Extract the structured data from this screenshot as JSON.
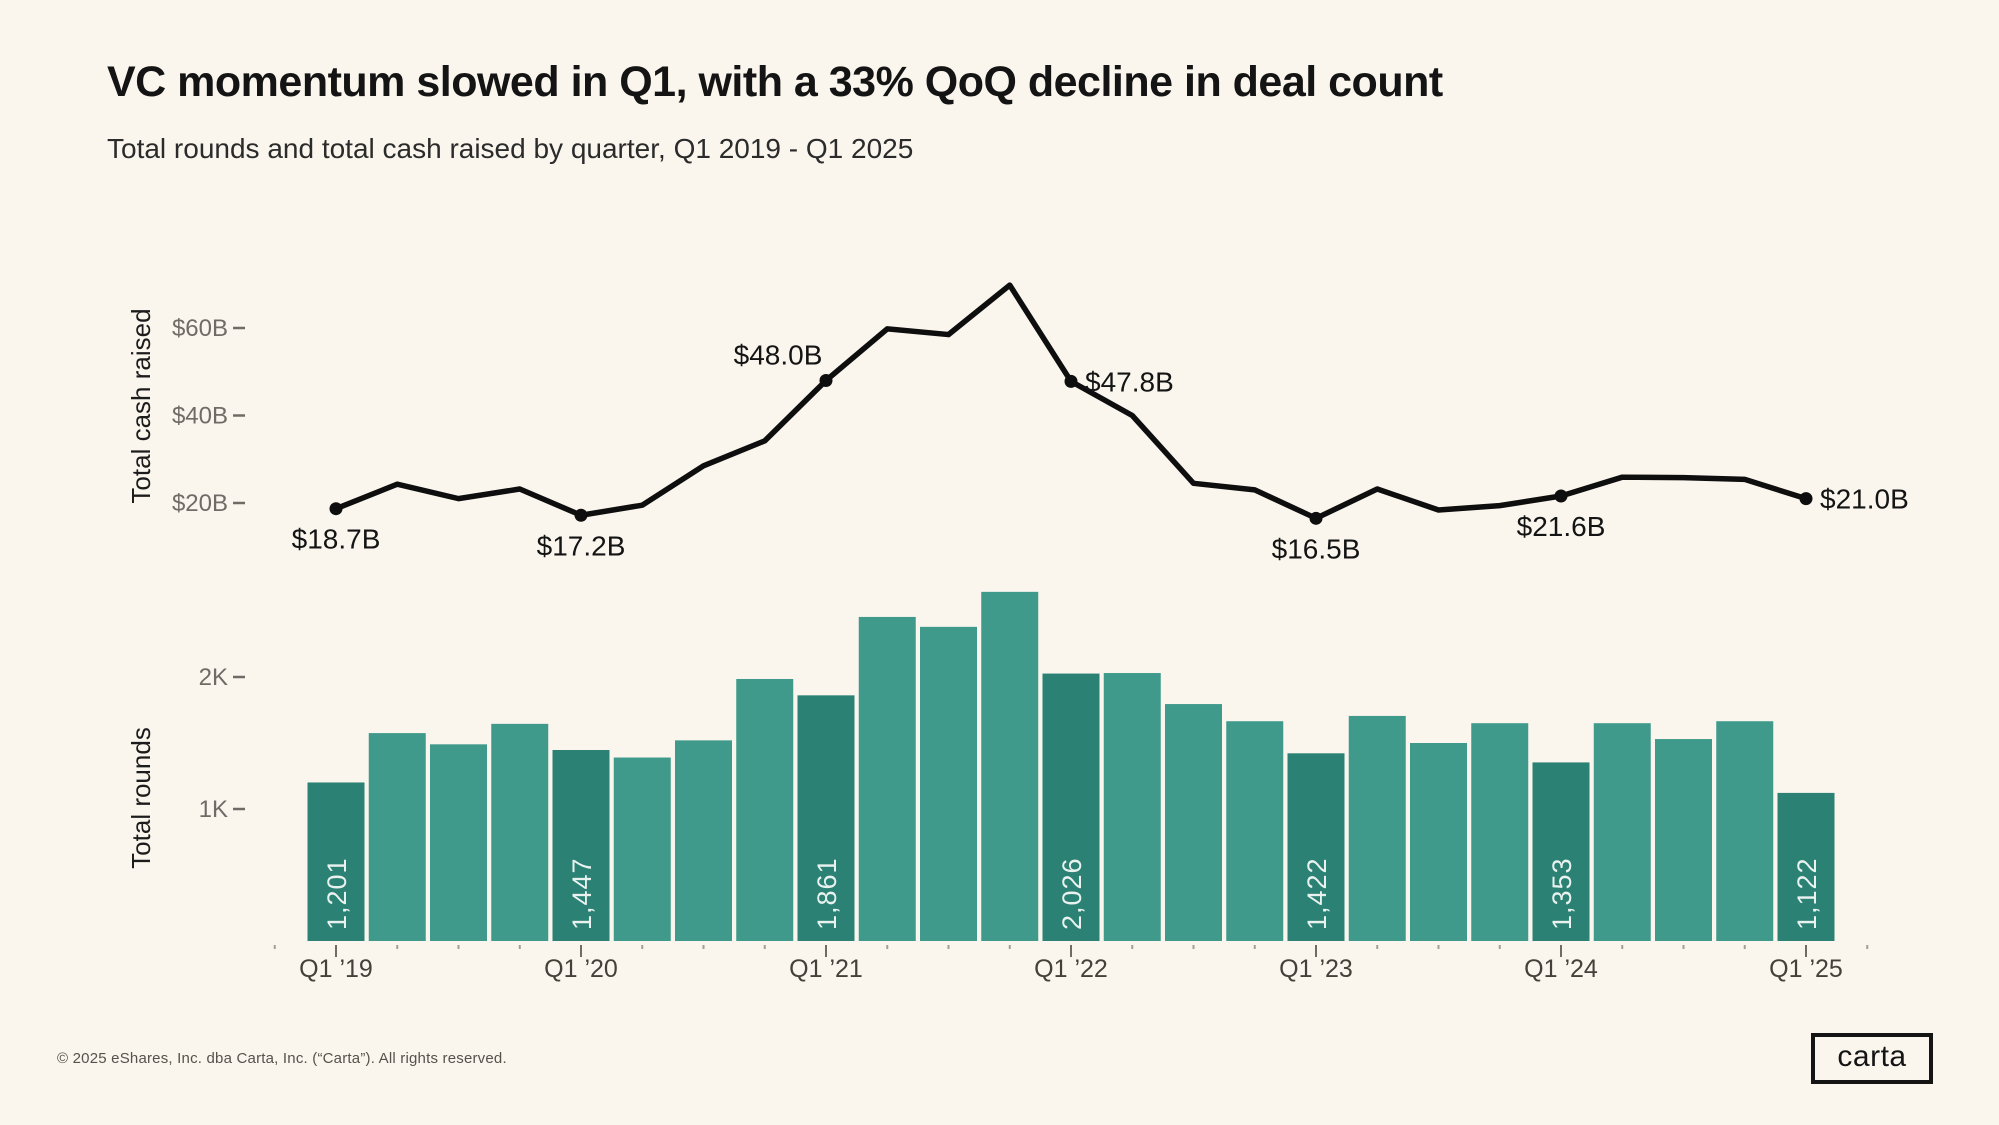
{
  "header": {
    "title": "VC momentum slowed in Q1, with a 33% QoQ decline in deal count",
    "subtitle": "Total rounds and total cash raised by quarter, Q1 2019 - Q1 2025"
  },
  "footer": {
    "copyright": "© 2025 eShares, Inc. dba Carta, Inc. (“Carta”). All rights reserved.",
    "logo_text": "carta"
  },
  "colors": {
    "background": "#faf6ee",
    "bar": "#3f9a8b",
    "bar_highlight": "#2a8174",
    "bar_label": "#e9f2ef",
    "line": "#0e0e0e",
    "label_dark": "#141414",
    "tick_gray": "#6f6b66",
    "xlabel_gray": "#44403a"
  },
  "chart_data": [
    {
      "type": "line",
      "title": "Total cash raised by quarter",
      "ylabel": "Total cash raised",
      "unit": "$B",
      "x": [
        "Q1 ’19",
        "Q2 ’19",
        "Q3 ’19",
        "Q4 ’19",
        "Q1 ’20",
        "Q2 ’20",
        "Q3 ’20",
        "Q4 ’20",
        "Q1 ’21",
        "Q2 ’21",
        "Q3 ’21",
        "Q4 ’21",
        "Q1 ’22",
        "Q2 ’22",
        "Q3 ’22",
        "Q4 ’22",
        "Q1 ’23",
        "Q2 ’23",
        "Q3 ’23",
        "Q4 ’23",
        "Q1 ’24",
        "Q2 ’24",
        "Q3 ’24",
        "Q4 ’24",
        "Q1 ’25"
      ],
      "values": [
        18.7,
        24.3,
        21.0,
        23.2,
        17.2,
        19.5,
        28.5,
        34.2,
        48.0,
        59.8,
        58.5,
        69.8,
        47.8,
        40.0,
        24.5,
        23.0,
        16.5,
        23.2,
        18.4,
        19.4,
        21.6,
        25.9,
        25.8,
        25.4,
        21.0
      ],
      "ylim": [
        0,
        75
      ],
      "grid": false,
      "yticks": [
        {
          "value": 20,
          "label": "$20B"
        },
        {
          "value": 40,
          "label": "$40B"
        },
        {
          "value": 60,
          "label": "$60B"
        }
      ],
      "labeled_points": [
        {
          "index": 0,
          "x": "Q1 ’19",
          "value": 18.7,
          "label": "$18.7B",
          "placement": "below"
        },
        {
          "index": 4,
          "x": "Q1 ’20",
          "value": 17.2,
          "label": "$17.2B",
          "placement": "below"
        },
        {
          "index": 8,
          "x": "Q1 ’21",
          "value": 48.0,
          "label": "$48.0B",
          "placement": "above-left"
        },
        {
          "index": 12,
          "x": "Q1 ’22",
          "value": 47.8,
          "label": "$47.8B",
          "placement": "right"
        },
        {
          "index": 16,
          "x": "Q1 ’23",
          "value": 16.5,
          "label": "$16.5B",
          "placement": "below"
        },
        {
          "index": 20,
          "x": "Q1 ’24",
          "value": 21.6,
          "label": "$21.6B",
          "placement": "below"
        },
        {
          "index": 24,
          "x": "Q1 ’25",
          "value": 21.0,
          "label": "$21.0B",
          "placement": "right"
        }
      ]
    },
    {
      "type": "bar",
      "title": "Total rounds by quarter",
      "ylabel": "Total rounds",
      "x": [
        "Q1 ’19",
        "Q2 ’19",
        "Q3 ’19",
        "Q4 ’19",
        "Q1 ’20",
        "Q2 ’20",
        "Q3 ’20",
        "Q4 ’20",
        "Q1 ’21",
        "Q2 ’21",
        "Q3 ’21",
        "Q4 ’21",
        "Q1 ’22",
        "Q2 ’22",
        "Q3 ’22",
        "Q4 ’22",
        "Q1 ’23",
        "Q2 ’23",
        "Q3 ’23",
        "Q4 ’23",
        "Q1 ’24",
        "Q2 ’24",
        "Q3 ’24",
        "Q4 ’24",
        "Q1 ’25"
      ],
      "values": [
        1201,
        1575,
        1490,
        1645,
        1447,
        1390,
        1520,
        1985,
        1861,
        2455,
        2380,
        2645,
        2026,
        2030,
        1795,
        1665,
        1422,
        1705,
        1500,
        1650,
        1353,
        1650,
        1530,
        1665,
        1122
      ],
      "ylim": [
        0,
        2700
      ],
      "grid": false,
      "yticks": [
        {
          "value": 1000,
          "label": "1K"
        },
        {
          "value": 2000,
          "label": "2K"
        }
      ],
      "highlighted_bars": [
        {
          "index": 0,
          "x": "Q1 ’19",
          "label": "1,201"
        },
        {
          "index": 4,
          "x": "Q1 ’20",
          "label": "1,447"
        },
        {
          "index": 8,
          "x": "Q1 ’21",
          "label": "1,861"
        },
        {
          "index": 12,
          "x": "Q1 ’22",
          "label": "2,026"
        },
        {
          "index": 16,
          "x": "Q1 ’23",
          "label": "1,422"
        },
        {
          "index": 20,
          "x": "Q1 ’24",
          "label": "1,353"
        },
        {
          "index": 24,
          "x": "Q1 ’25",
          "label": "1,122"
        }
      ],
      "xtick_labels": [
        "Q1 ’19",
        "Q1 ’20",
        "Q1 ’21",
        "Q1 ’22",
        "Q1 ’23",
        "Q1 ’24",
        "Q1 ’25"
      ]
    }
  ]
}
